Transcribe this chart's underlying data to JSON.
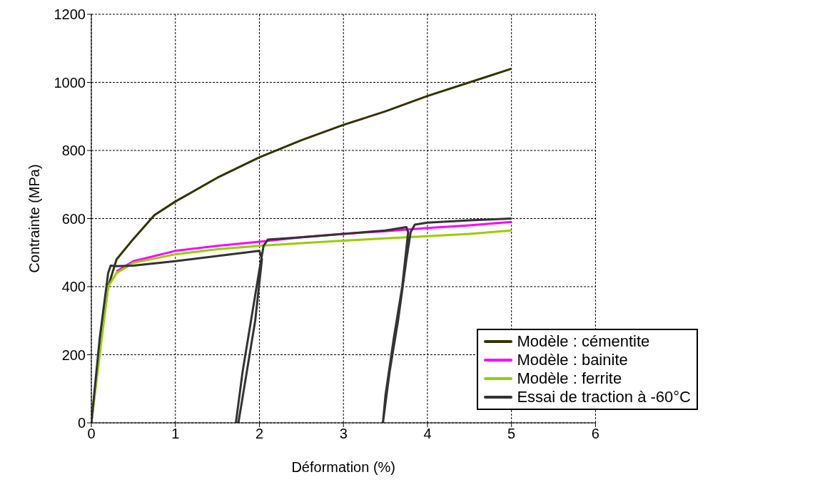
{
  "chart_data": {
    "type": "line",
    "xlabel": "Déformation (%)",
    "ylabel": "Contrainte (MPa)",
    "xlim": [
      0,
      6
    ],
    "xticks": [
      0,
      1,
      2,
      3,
      4,
      5,
      6
    ],
    "ylim": [
      0,
      1200
    ],
    "yticks": [
      0,
      200,
      400,
      600,
      800,
      1000,
      1200
    ],
    "grid": true,
    "legend": "bottom right",
    "marker": "none",
    "line_style": "solid",
    "series": [
      {
        "name": "Modèle : cémentite",
        "color": "#333300",
        "x": [
          0,
          0.1,
          0.2,
          0.25,
          0.3,
          0.5,
          0.75,
          1,
          1.5,
          2,
          2.5,
          3,
          3.5,
          4,
          4.5,
          5
        ],
        "values": [
          0,
          220,
          400,
          440,
          480,
          540,
          610,
          650,
          720,
          780,
          830,
          875,
          915,
          960,
          1000,
          1040
        ]
      },
      {
        "name": "Modèle : bainite",
        "color": "#ff00ff",
        "x": [
          0.3,
          0.5,
          1,
          1.5,
          2,
          2.5,
          3,
          3.5,
          4,
          4.5,
          5
        ],
        "values": [
          445,
          475,
          505,
          520,
          532,
          545,
          555,
          563,
          572,
          580,
          590
        ]
      },
      {
        "name": "Modèle : ferrite",
        "color": "#99cc00",
        "x": [
          0,
          0.1,
          0.2,
          0.3,
          0.5,
          1,
          1.5,
          2,
          2.5,
          3,
          3.5,
          4,
          4.5,
          5
        ],
        "values": [
          0,
          200,
          400,
          440,
          470,
          495,
          510,
          520,
          528,
          535,
          542,
          548,
          555,
          565
        ]
      },
      {
        "name": "Essai de traction à -60°C",
        "color": "#333333",
        "x": [
          0,
          0.1,
          0.2,
          0.23,
          0.3,
          0.5,
          1,
          1.5,
          2,
          2.03,
          1.95,
          1.85,
          1.75,
          1.72,
          1.8,
          1.9,
          2,
          2.05,
          2.1,
          2.5,
          3,
          3.5,
          3.75,
          3.77,
          3.7,
          3.6,
          3.5,
          3.47,
          3.55,
          3.65,
          3.75,
          3.8,
          3.85,
          4,
          4.5,
          5
        ],
        "values": [
          0,
          250,
          440,
          462,
          460,
          462,
          475,
          490,
          505,
          480,
          300,
          150,
          0,
          0,
          150,
          300,
          450,
          520,
          538,
          545,
          555,
          565,
          575,
          560,
          400,
          250,
          80,
          0,
          150,
          300,
          480,
          560,
          582,
          588,
          595,
          600
        ]
      }
    ]
  }
}
